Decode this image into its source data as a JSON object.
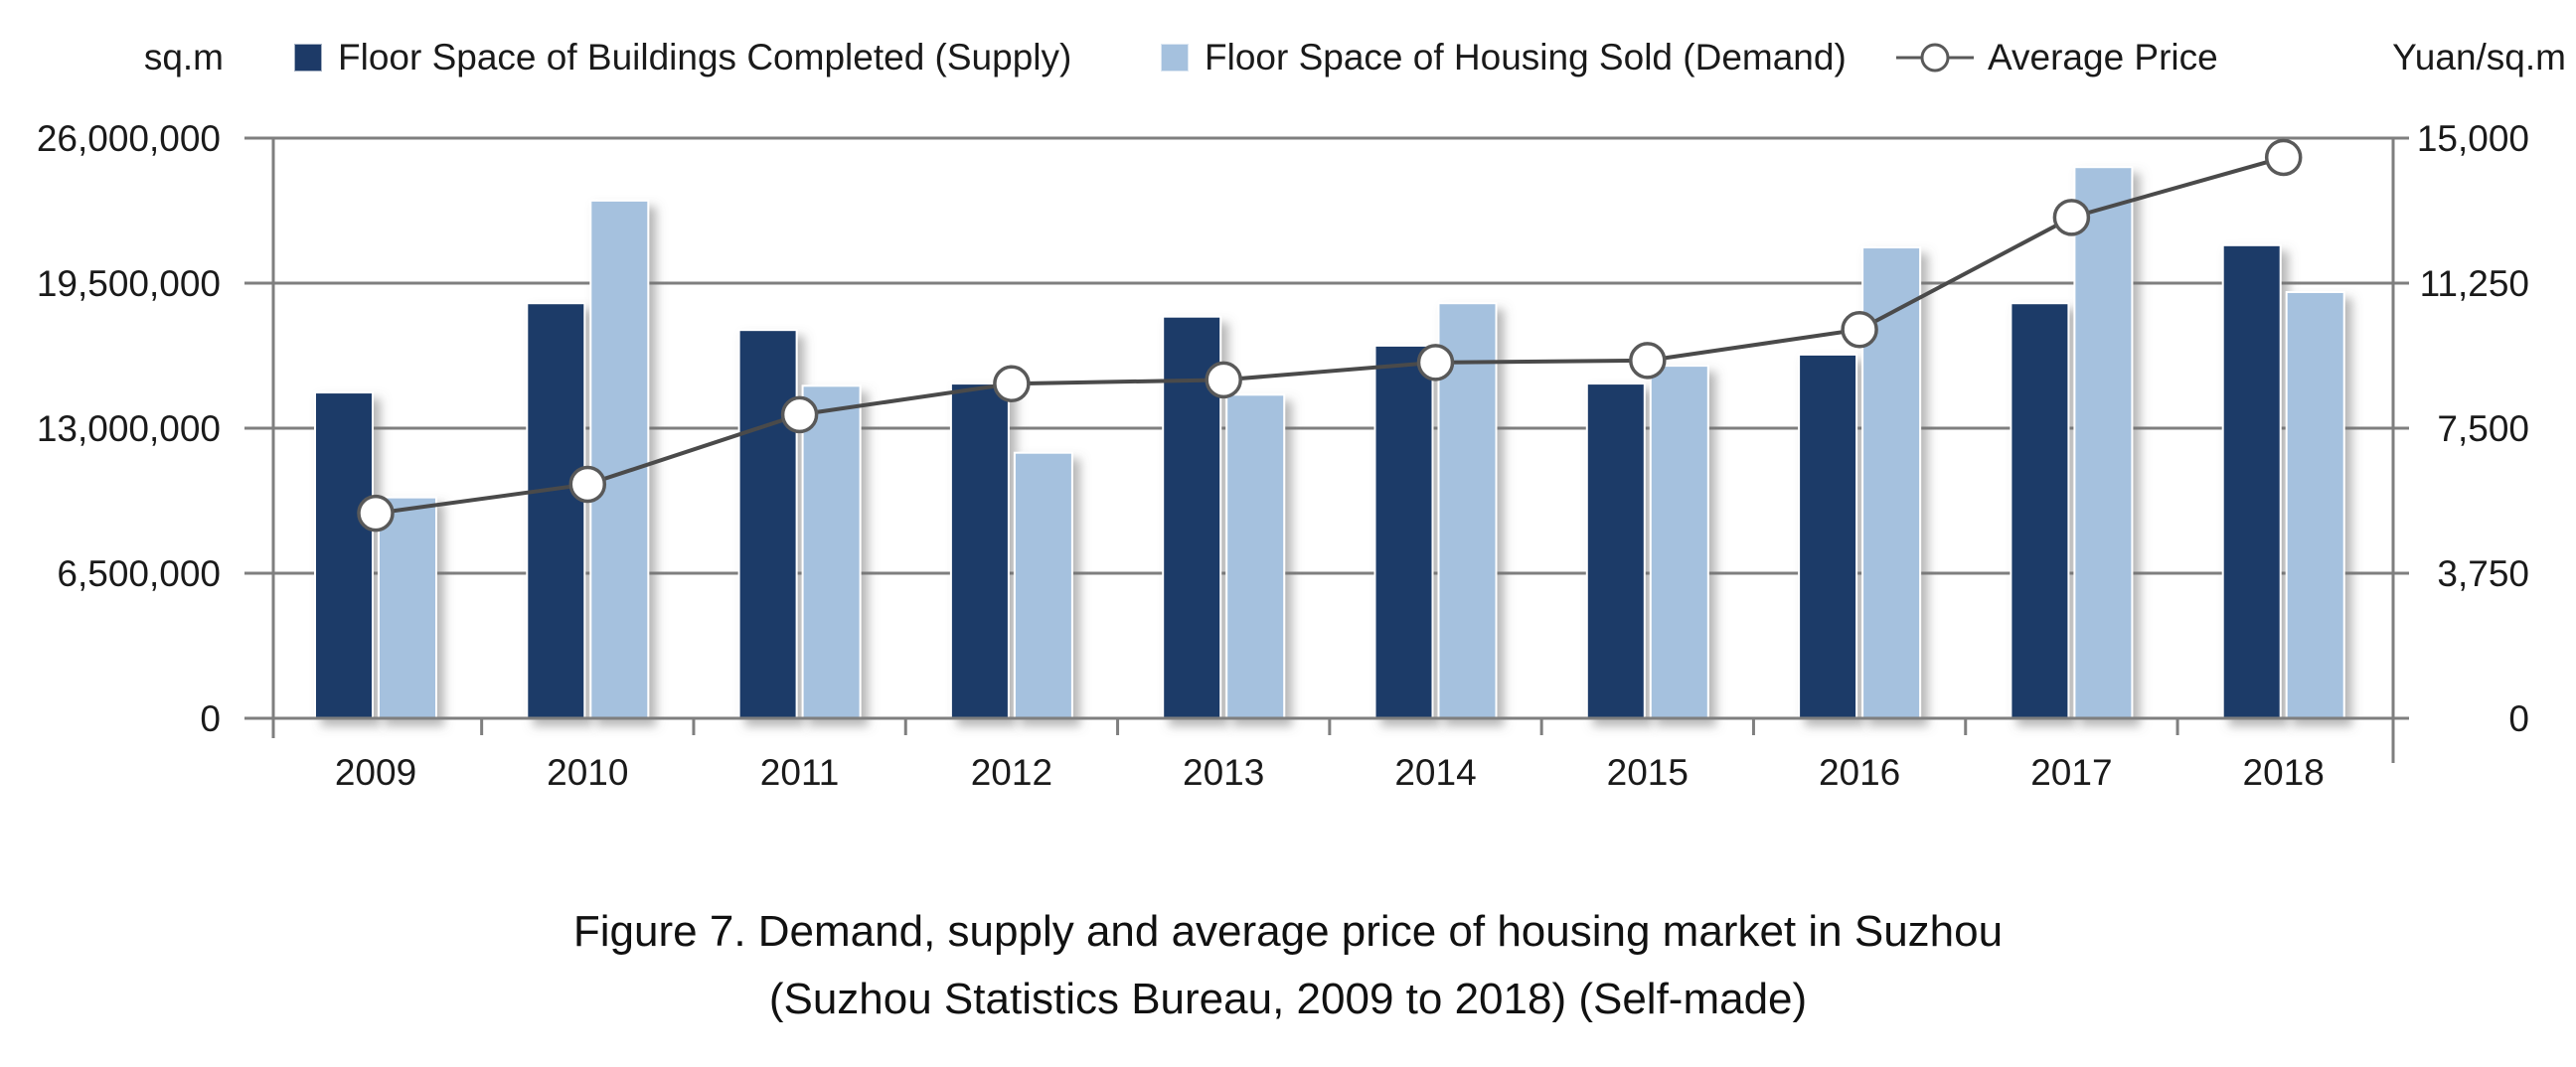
{
  "units": {
    "left": "sq.m",
    "right": "Yuan/sq.m"
  },
  "legend": {
    "items": [
      {
        "label": "Floor Space of Buildings Completed (Supply)"
      },
      {
        "label": "Floor Space of Housing Sold (Demand)"
      },
      {
        "label": "Average Price"
      }
    ]
  },
  "colors": {
    "supply": "#1d3a67",
    "demand": "#a5c1de",
    "price_line": "#4a4a4a",
    "marker_fill": "#ffffff",
    "marker_stroke": "#595959",
    "grid": "#7f7f7f",
    "text": "#1a1a1a"
  },
  "caption": {
    "line1": "Figure 7. Demand, supply and average price of housing market in Suzhou",
    "line2": "(Suzhou Statistics Bureau, 2009 to 2018) (Self-made)"
  },
  "chart_data": {
    "type": "bar",
    "subtype": "grouped-bars-with-line",
    "categories": [
      "2009",
      "2010",
      "2011",
      "2012",
      "2013",
      "2014",
      "2015",
      "2016",
      "2017",
      "2018"
    ],
    "series": [
      {
        "name": "Floor Space of Buildings Completed (Supply)",
        "type": "bar",
        "axis": "left",
        "color_key": "supply",
        "values": [
          14600000,
          18600000,
          17400000,
          15000000,
          18000000,
          16700000,
          15000000,
          16300000,
          18600000,
          21200000
        ]
      },
      {
        "name": "Floor Space of Housing Sold (Demand)",
        "type": "bar",
        "axis": "left",
        "color_key": "demand",
        "values": [
          9900000,
          23200000,
          14900000,
          11900000,
          14500000,
          18600000,
          15800000,
          21100000,
          24700000,
          19100000
        ]
      },
      {
        "name": "Average Price",
        "type": "line",
        "axis": "right",
        "color_key": "price_line",
        "values": [
          5300,
          6050,
          7850,
          8650,
          8750,
          9200,
          9250,
          10050,
          12950,
          14500
        ]
      }
    ],
    "left_axis": {
      "label": "sq.m",
      "min": 0,
      "max": 26000000,
      "tick_step": 6500000,
      "tick_labels": [
        "0",
        "6,500,000",
        "13,000,000",
        "19,500,000",
        "26,000,000"
      ]
    },
    "right_axis": {
      "label": "Yuan/sq.m",
      "min": 0,
      "max": 15000,
      "tick_step": 3750,
      "tick_labels": [
        "0",
        "3,750",
        "7,500",
        "11,250",
        "15,000"
      ]
    },
    "grid": true,
    "legend_position": "top",
    "title": "Figure 7. Demand, supply and average price of housing market in Suzhou (Suzhou Statistics Bureau, 2009 to 2018) (Self-made)"
  }
}
